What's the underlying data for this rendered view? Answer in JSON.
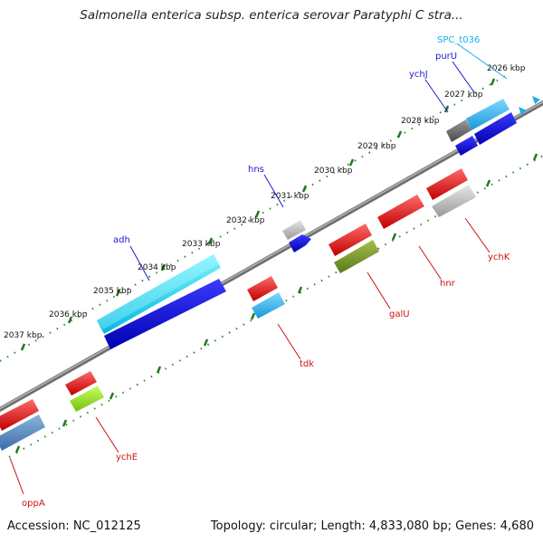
{
  "title": "Salmonella enterica subsp. enterica serovar Paratyphi C stra...",
  "accession": "Accession: NC_012125",
  "summary": "Topology: circular; Length: 4,833,080 bp; Genes: 4,680",
  "colors": {
    "backbone": "#808080",
    "tick": "#2e8b2e",
    "forward_label": "#1a1ad0",
    "reverse_label": "#d01010",
    "special_label": "#1ab0e8"
  },
  "ticks": [
    "2026 kbp",
    "2027 kbp",
    "2028 kbp",
    "2029 kbp",
    "2030 kbp",
    "2031 kbp",
    "2032 kbp",
    "2033 kbp",
    "2034 kbp",
    "2035 kbp",
    "2036 kbp",
    "2037 kbp"
  ],
  "genes": [
    {
      "label": "SPC_t036",
      "strand": "+",
      "color": "#1ab0e8"
    },
    {
      "label": "purU",
      "strand": "+",
      "color": "#1a1ad0"
    },
    {
      "label": "ychJ",
      "strand": "+",
      "color": "#1a1ad0"
    },
    {
      "label": "hns",
      "strand": "+",
      "color": "#1a1ad0"
    },
    {
      "label": "adh",
      "strand": "+",
      "color": "#1a1ad0"
    },
    {
      "label": "ychK",
      "strand": "-",
      "color": "#d01010"
    },
    {
      "label": "hnr",
      "strand": "-",
      "color": "#d01010"
    },
    {
      "label": "galU",
      "strand": "-",
      "color": "#d01010"
    },
    {
      "label": "tdk",
      "strand": "-",
      "color": "#d01010"
    },
    {
      "label": "ychE",
      "strand": "-",
      "color": "#d01010"
    },
    {
      "label": "oppA",
      "strand": "-",
      "color": "#d01010"
    }
  ]
}
